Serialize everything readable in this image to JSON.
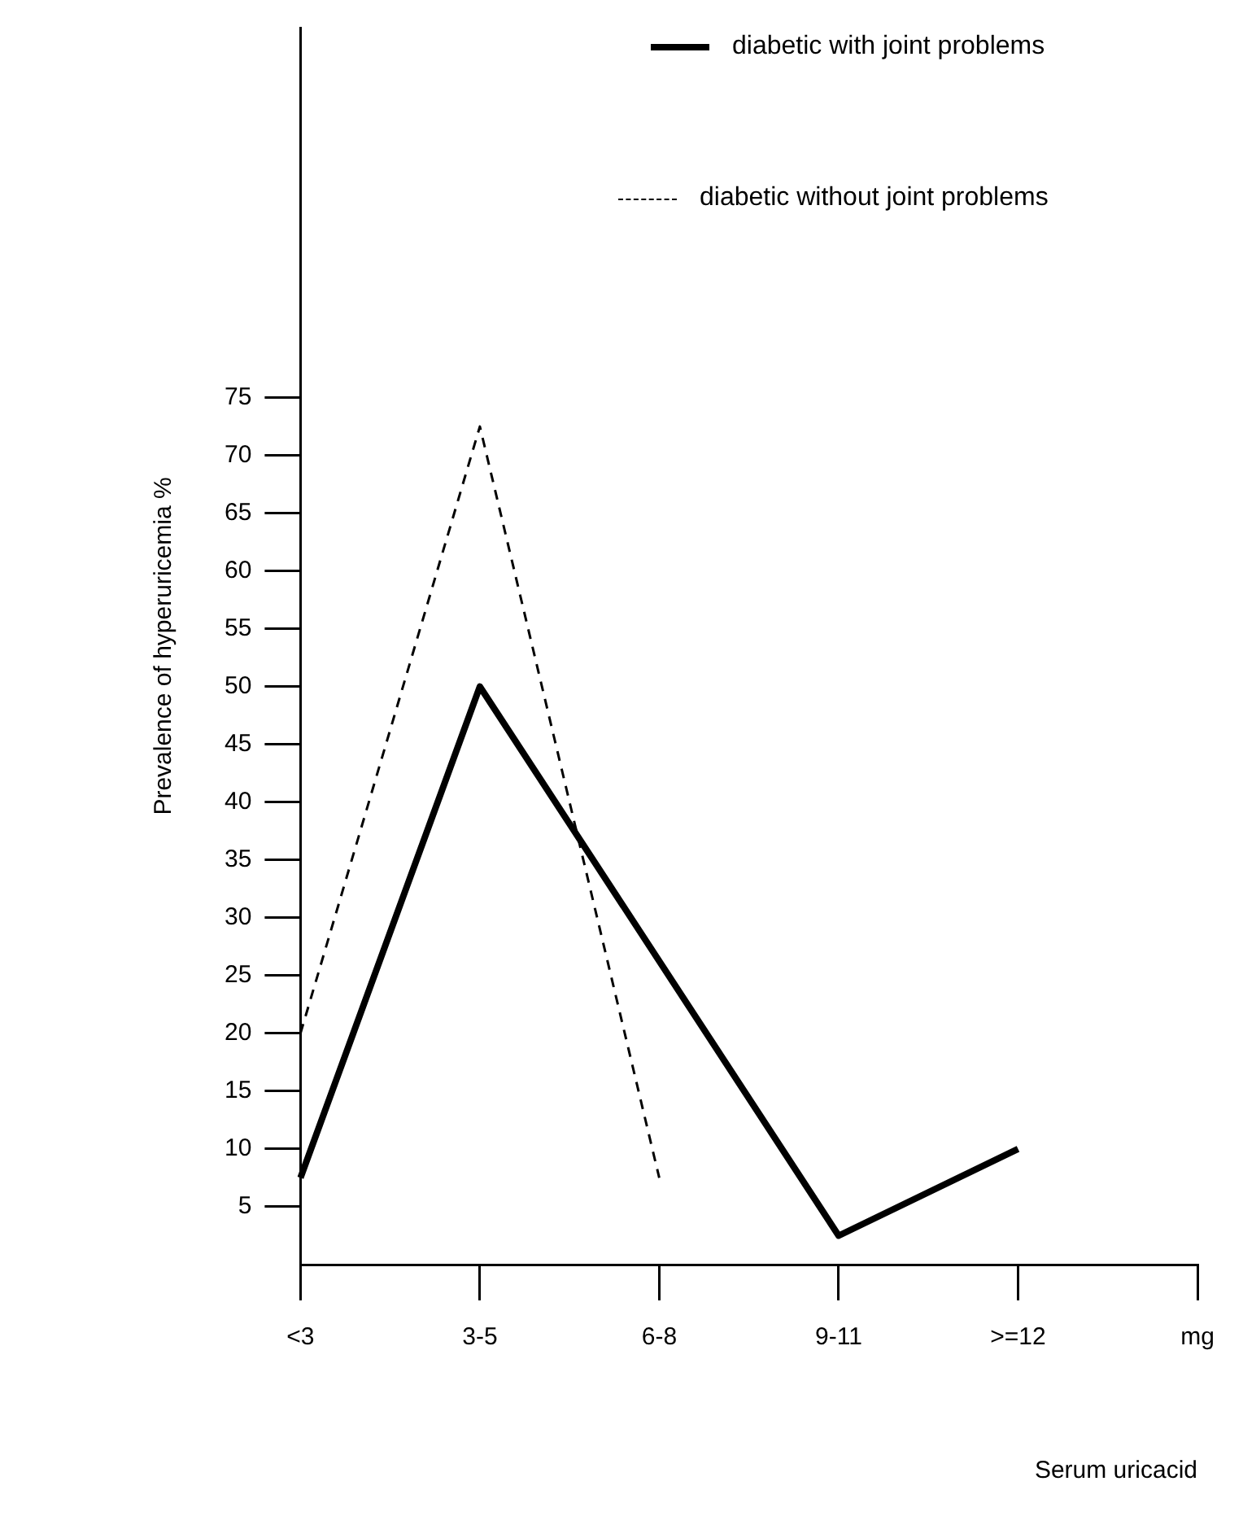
{
  "chart_data": {
    "type": "line",
    "xlabel": "Serum uricacid",
    "ylabel": "Prevalence of hyperuricemia %",
    "categories": [
      "<3",
      "3-5",
      "6-8",
      "9-11",
      ">=12",
      "mg"
    ],
    "series": [
      {
        "name": "diabetic with joint problems",
        "color": "#000000",
        "line_style": "solid",
        "values": [
          7.5,
          50,
          null,
          2.5,
          10,
          null
        ]
      },
      {
        "name": "diabetic without joint problems",
        "color": "#000000",
        "line_style": "dashed",
        "values": [
          20,
          72.5,
          7.5,
          null,
          null,
          null
        ]
      }
    ],
    "ylim": [
      0,
      107
    ],
    "yticks": [
      5,
      10,
      15,
      20,
      25,
      30,
      35,
      40,
      45,
      50,
      55,
      60,
      65,
      70,
      75
    ],
    "grid": false,
    "legend": "top right",
    "marker": "none"
  }
}
